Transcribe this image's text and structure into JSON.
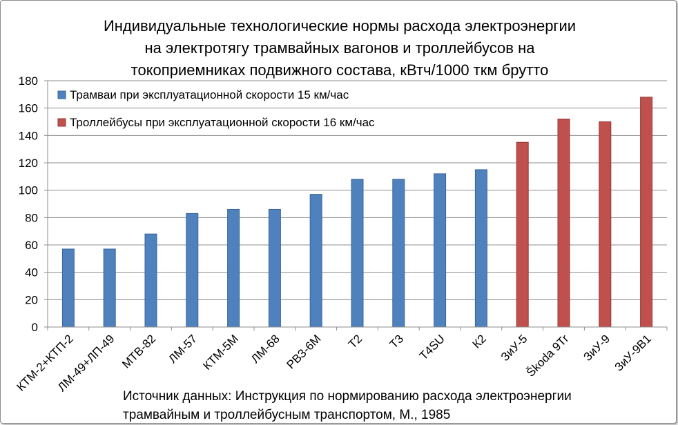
{
  "chart_data": {
    "type": "bar",
    "title_lines": [
      "Индивидуальные технологические нормы расхода электроэнергии",
      "на электротягу трамвайных вагонов и троллейбусов на",
      "токоприемниках подвижного состава, кВтч/1000 ткм брутто"
    ],
    "categories": [
      "КТМ-2+КТП-2",
      "ЛМ-49+ЛП-49",
      "МТВ-82",
      "ЛМ-57",
      "КТМ-5М",
      "ЛМ-68",
      "РВЗ-6М",
      "Т2",
      "Т3",
      "T4SU",
      "К2",
      "ЗиУ-5",
      "Škoda 9Tr",
      "ЗиУ-9",
      "ЗиУ-9В1"
    ],
    "series": [
      {
        "name": "Трамваи при эксплуатационной скорости 15 км/час",
        "color": "#4f81bd",
        "stroke": "#3a659a",
        "values": [
          57,
          57,
          68,
          83,
          86,
          86,
          97,
          108,
          108,
          112,
          115,
          null,
          null,
          null,
          null
        ]
      },
      {
        "name": "Троллейбусы при эксплуатационной скорости 16 км/час",
        "color": "#c0504d",
        "stroke": "#943634",
        "values": [
          null,
          null,
          null,
          null,
          null,
          null,
          null,
          null,
          null,
          null,
          null,
          135,
          152,
          150,
          168
        ]
      }
    ],
    "y_ticks": [
      "0",
      "20",
      "40",
      "60",
      "80",
      "100",
      "120",
      "140",
      "160",
      "180"
    ],
    "ylim": [
      0,
      180
    ],
    "grid": true,
    "legend": "top-left",
    "source_lines": [
      "Источник  данных: Инструкция по нормированию расхода электроэнергии",
      "трамвайным и троллейбусным транспортом, М., 1985"
    ]
  }
}
